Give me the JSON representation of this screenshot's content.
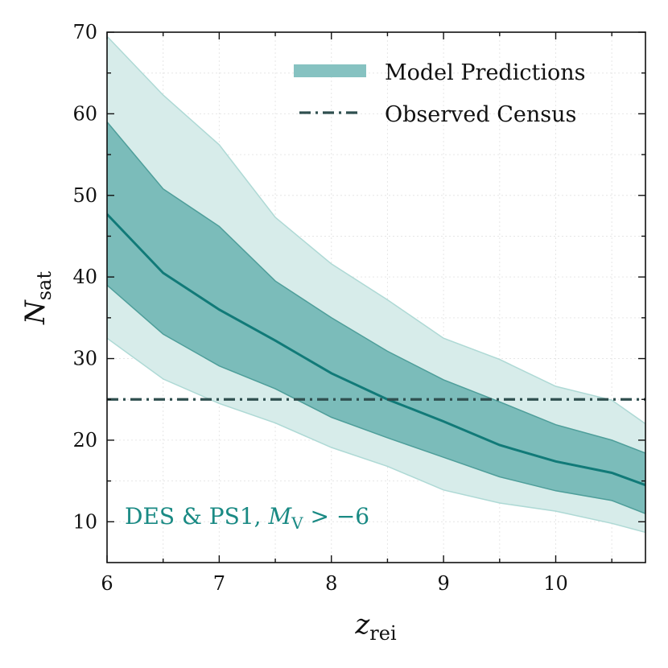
{
  "chart_data": {
    "type": "area",
    "title": "",
    "xlabel": {
      "main": "z",
      "sub": "rei"
    },
    "ylabel": {
      "main": "N",
      "sub": "sat"
    },
    "xlim": [
      6,
      10.8
    ],
    "ylim": [
      5,
      70
    ],
    "xticks": [
      6,
      7,
      8,
      9,
      10
    ],
    "yticks": [
      10,
      20,
      30,
      40,
      50,
      60,
      70
    ],
    "grid": true,
    "legend_position": "top-right",
    "x": [
      6,
      6.5,
      7,
      7.5,
      8,
      8.5,
      9,
      9.5,
      10,
      10.5,
      10.8
    ],
    "series": [
      {
        "name": "outer-band-upper",
        "values": [
          69.5,
          62.3,
          56.2,
          47.3,
          41.6,
          37.2,
          32.5,
          29.9,
          26.6,
          24.9,
          22.0
        ]
      },
      {
        "name": "outer-band-lower",
        "values": [
          32.5,
          27.5,
          24.5,
          22.1,
          19.1,
          16.8,
          13.9,
          12.3,
          11.3,
          9.8,
          8.7
        ]
      },
      {
        "name": "inner-band-upper",
        "values": [
          59.0,
          50.8,
          46.2,
          39.5,
          35.0,
          30.9,
          27.4,
          24.7,
          21.9,
          20.0,
          18.4
        ]
      },
      {
        "name": "inner-band-lower",
        "values": [
          39.0,
          33.0,
          29.1,
          26.3,
          22.8,
          20.3,
          17.9,
          15.5,
          13.8,
          12.6,
          11.0
        ]
      },
      {
        "name": "median",
        "values": [
          47.7,
          40.5,
          36.0,
          32.2,
          28.2,
          25.0,
          22.3,
          19.4,
          17.4,
          16.0,
          14.5
        ]
      }
    ],
    "observed_census": 25,
    "legend": [
      {
        "label": "Model Predictions",
        "style": "band"
      },
      {
        "label": "Observed Census",
        "style": "dash-dot"
      }
    ],
    "annotation": {
      "text_main": "DES & PS1, ",
      "text_var": "M",
      "text_sub": "V",
      "text_rest": " > −6"
    }
  },
  "colors": {
    "band_outer": "#d7ecea",
    "band_outer_edge": "#aed9d5",
    "band_inner": "#7bbcba",
    "band_inner_edge": "#4e9e9a",
    "median": "#117a78",
    "census": "#2f4f4f",
    "legend_band": "#86c2c1",
    "annotation": "#1a8a84"
  }
}
